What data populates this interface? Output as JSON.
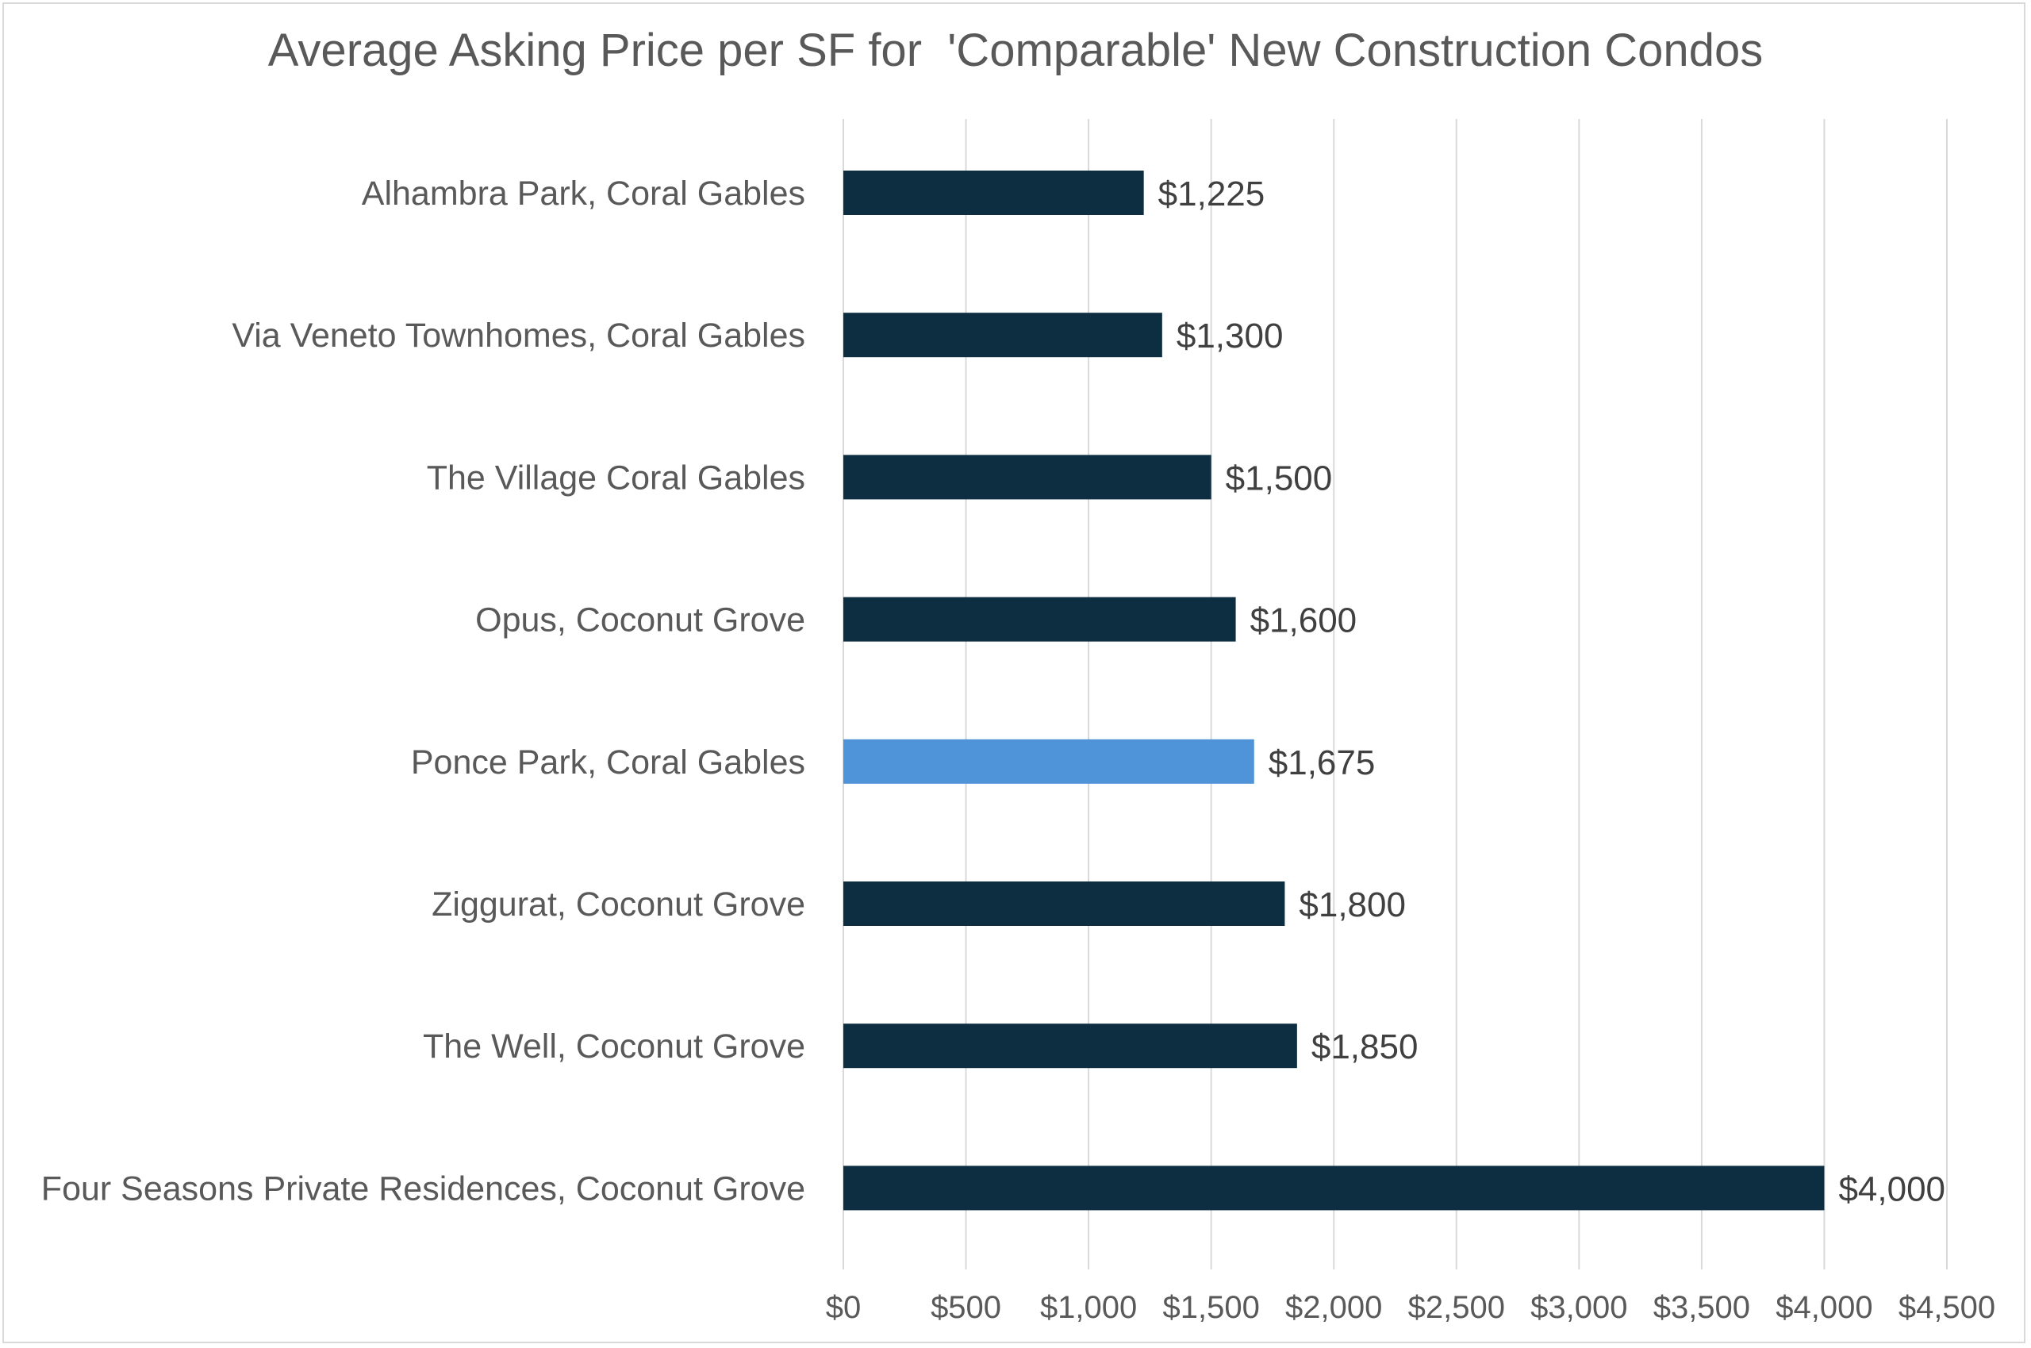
{
  "chart_data": {
    "type": "bar",
    "orientation": "horizontal",
    "title": "Average Asking Price per SF for  'Comparable' New Construction Condos",
    "xlabel": "",
    "ylabel": "",
    "categories": [
      "Alhambra Park, Coral Gables",
      "Via Veneto Townhomes, Coral Gables",
      "The Village Coral Gables",
      "Opus, Coconut Grove",
      "Ponce Park, Coral Gables",
      "Ziggurat, Coconut Grove",
      "The Well, Coconut Grove",
      "Four Seasons Private Residences, Coconut Grove"
    ],
    "values": [
      1225,
      1300,
      1500,
      1600,
      1675,
      1800,
      1850,
      4000
    ],
    "data_labels": [
      "$1,225",
      "$1,300",
      "$1,500",
      "$1,600",
      "$1,675",
      "$1,800",
      "$1,850",
      "$4,000"
    ],
    "highlighted_category": "Ponce Park, Coral Gables",
    "xlim": [
      0,
      4500
    ],
    "x_ticks": [
      0,
      500,
      1000,
      1500,
      2000,
      2500,
      3000,
      3500,
      4000,
      4500
    ],
    "x_tick_labels": [
      "$0",
      "$500",
      "$1,000",
      "$1,500",
      "$2,000",
      "$2,500",
      "$3,000",
      "$3,500",
      "$4,000",
      "$4,500"
    ],
    "grid": true,
    "legend": "none",
    "colors": {
      "bar": "#0d2d40",
      "highlight": "#4f94d9",
      "grid": "#d9d9d9",
      "text": "#595959",
      "data_label": "#404040"
    }
  }
}
